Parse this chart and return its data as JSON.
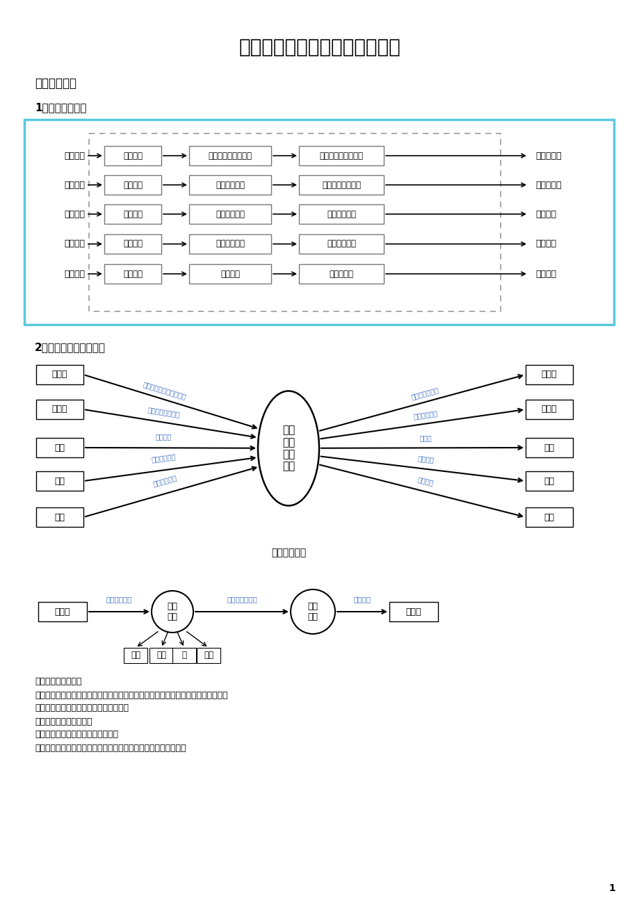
{
  "title": "学生成绩管理系统技术说明文档",
  "section1": "一、需求分析",
  "subsection1": "1、分析用户活动",
  "subsection2": "2、数据流图和数据词典",
  "dfd_caption": "最初数据流图",
  "left_labels": [
    "系统管理",
    "学生管理",
    "课程管理",
    "选课管理",
    "成绩查询"
  ],
  "mid1_labels": [
    "接收申请",
    "接收申请",
    "接收申请",
    "接收申请",
    "接收申请"
  ],
  "mid2_labels": [
    "用户及班级数据存档",
    "学生数据存档",
    "课程数据存档",
    "选课信息存档",
    "查询信息"
  ],
  "mid3_labels": [
    "打印用户及班级信息",
    "打印学生数据信息",
    "打印课程信息",
    "打印选课信息",
    "打印成绩表"
  ],
  "right_labels": [
    "交给管理者",
    "交给管理者",
    "交给教师",
    "交给教师",
    "交给学生"
  ],
  "dfd_left_boxes": [
    "管理者",
    "管理者",
    "教师",
    "学生",
    "学生"
  ],
  "dfd_right_boxes": [
    "管理者",
    "管理员",
    "教师",
    "学生",
    "学生"
  ],
  "dfd_center_text": "学生\n成绩\n管理\n系统",
  "dfd_in_labels": [
    "录入用户及班级数据请求",
    "录入学生信息请求",
    "排课请求",
    "选课录取请求",
    "成绩查询请求"
  ],
  "dfd_out_labels": [
    "用户及班级信息",
    "学生信息清单",
    "课程表",
    "选课清单",
    "成绩清单"
  ],
  "bot_left_box": "管理者",
  "bot_right_box": "管理者",
  "bot_c1_text": "信息\n录入",
  "bot_c2_text": "打印\n信息",
  "bot_arrow1": "录入信息请求",
  "bot_arrow2": "用户项数据请求",
  "bot_arrow3": "信息清单",
  "bot_sub_labels": [
    "班级",
    "用户",
    "系",
    "用户"
  ],
  "data_desc_title": "数据流及文件说明：",
  "data_desc_lines": [
    "录入信息请求：用户名，密码，权限，班号，班级名，辅导员姓名，系号，系主任，",
    "班级：班级名，班号，系号，辅导员姓名",
    "用户：姓名，密码，权限",
    "系：系号，系名，系主任，电话号码",
    "用户及班级信息数据：用户名，密码，权限，班号，班级名，系号"
  ],
  "page_number": "1",
  "bg": "#ffffff",
  "cyan_border": "#5bc8dc",
  "dark_border": "#777777",
  "dash_border": "#999999",
  "arrow_blue": "#4472c4",
  "text_black": "#000000"
}
